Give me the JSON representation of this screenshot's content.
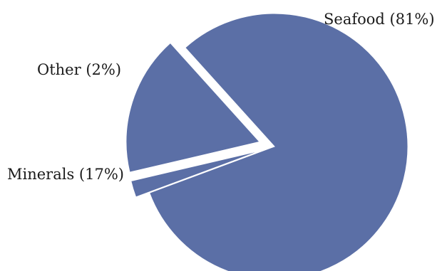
{
  "chart_data": {
    "type": "pie",
    "slices": [
      {
        "label": "Seafood",
        "value": 81,
        "display": "Seafood (81%)"
      },
      {
        "label": "Other",
        "value": 2,
        "display": "Other (2%)"
      },
      {
        "label": "Minerals",
        "value": 17,
        "display": "Minerals (17%)"
      }
    ],
    "unit": "%",
    "color": "#5b6fa6",
    "exploded": true
  }
}
